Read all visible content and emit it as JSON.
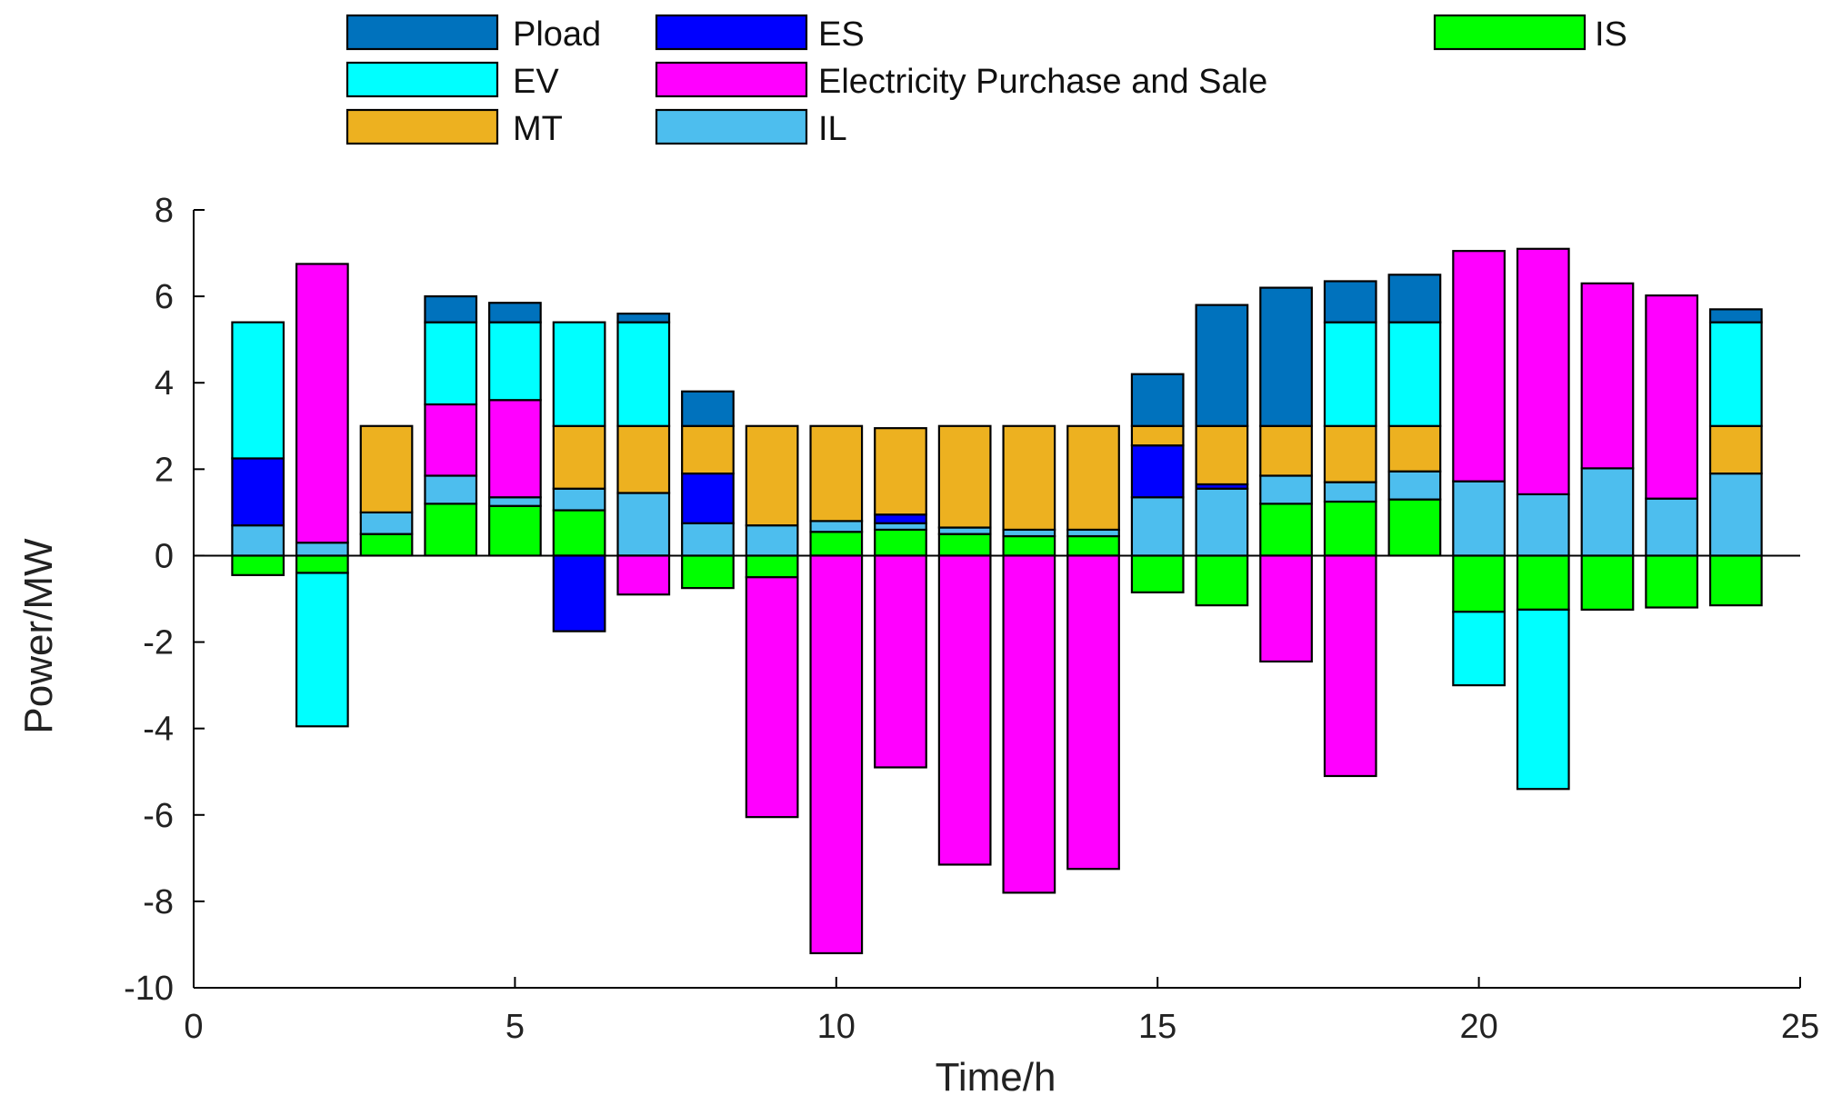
{
  "chart_data": {
    "type": "bar",
    "stacked": true,
    "title": "",
    "xlabel": "Time/h",
    "ylabel": "Power/MW",
    "xlim": [
      0,
      25
    ],
    "ylim": [
      -10,
      8
    ],
    "x_ticks": [
      "0",
      "5",
      "10",
      "15",
      "20",
      "25"
    ],
    "y_ticks": [
      "-10",
      "-8",
      "-6",
      "-4",
      "-2",
      "0",
      "2",
      "4",
      "6",
      "8"
    ],
    "x": [
      1,
      2,
      3,
      4,
      5,
      6,
      7,
      8,
      9,
      10,
      11,
      12,
      13,
      14,
      15,
      16,
      17,
      18,
      19,
      20,
      21,
      22,
      23,
      24
    ],
    "legend_position": "top",
    "series": [
      {
        "name": "IS",
        "color": "#00ff00",
        "values": [
          -0.45,
          -0.4,
          0.5,
          1.2,
          1.15,
          1.05,
          0,
          -0.75,
          -0.5,
          0.55,
          0.6,
          0.5,
          0.45,
          0.45,
          -0.85,
          -1.15,
          1.2,
          1.25,
          1.3,
          -1.3,
          -1.25,
          -1.25,
          -1.2,
          -1.15
        ]
      },
      {
        "name": "IL",
        "color": "#4dbeee",
        "values": [
          0.7,
          0.3,
          0.5,
          0.65,
          0.2,
          0.5,
          1.45,
          0.75,
          0.7,
          0.25,
          0.15,
          0.15,
          0.15,
          0.15,
          1.35,
          1.55,
          0.65,
          0.45,
          0.65,
          1.72,
          1.42,
          2.02,
          1.32,
          1.9
        ]
      },
      {
        "name": "ES",
        "color": "#0000ff",
        "values": [
          1.55,
          0,
          0,
          0,
          0,
          -1.75,
          0,
          1.15,
          0,
          0,
          0.2,
          0,
          0,
          0,
          1.2,
          0.1,
          0,
          0,
          0,
          0,
          0,
          0,
          0,
          0
        ]
      },
      {
        "name": "MT",
        "color": "#edb120",
        "values": [
          0,
          0,
          2,
          0,
          0,
          1.45,
          1.55,
          1.1,
          2.3,
          2.2,
          2,
          2.35,
          2.4,
          2.4,
          0.45,
          1.35,
          1.15,
          1.3,
          1.05,
          0,
          0,
          0,
          0,
          1.1
        ]
      },
      {
        "name": "Electricity Purchase and Sale",
        "color": "#ff00ff",
        "values": [
          0,
          6.45,
          0,
          1.65,
          2.25,
          0,
          -0.9,
          0,
          -5.55,
          -9.2,
          -4.9,
          -7.15,
          -7.8,
          -7.25,
          0,
          0,
          -2.45,
          -5.1,
          0,
          5.33,
          5.68,
          4.28,
          4.7,
          0
        ]
      },
      {
        "name": "EV",
        "color": "#00ffff",
        "values": [
          3.15,
          -3.55,
          0,
          1.9,
          1.8,
          2.4,
          2.4,
          0,
          0,
          0,
          0,
          0,
          0,
          0,
          0,
          0,
          0,
          2.4,
          2.4,
          -1.7,
          -4.15,
          0,
          0,
          2.4
        ]
      },
      {
        "name": "Pload",
        "color": "#0072bd",
        "values": [
          0,
          0,
          0,
          0.6,
          0.45,
          0,
          0.2,
          0.8,
          0,
          0,
          0,
          0,
          0,
          0,
          1.2,
          2.8,
          3.2,
          0.95,
          1.1,
          0,
          0,
          0,
          0,
          0.3
        ]
      }
    ]
  },
  "legend": [
    {
      "label": "Pload",
      "color": "#0072bd"
    },
    {
      "label": "EV",
      "color": "#00ffff"
    },
    {
      "label": "MT",
      "color": "#edb120"
    },
    {
      "label": "ES",
      "color": "#0000ff"
    },
    {
      "label": "Electricity Purchase and Sale",
      "color": "#ff00ff"
    },
    {
      "label": "IL",
      "color": "#4dbeee"
    },
    {
      "label": "IS",
      "color": "#00ff00"
    }
  ]
}
